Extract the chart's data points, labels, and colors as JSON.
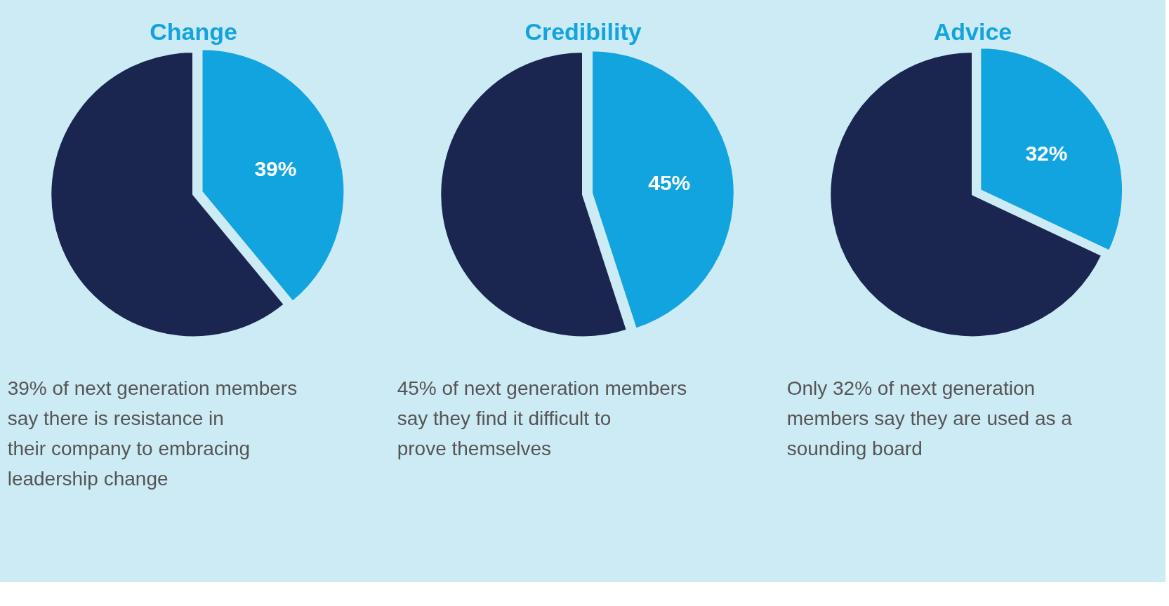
{
  "chart_data": [
    {
      "type": "pie",
      "title": "Change",
      "categories": [
        null,
        null
      ],
      "values": [
        39,
        61
      ],
      "colors": [
        "#12a4de",
        "#1a2650"
      ],
      "value_labels": [
        "39%",
        null
      ],
      "annotations": [
        "39% of next generation members say there is resistance in their company to embracing leadership change"
      ]
    },
    {
      "type": "pie",
      "title": "Credibility",
      "categories": [
        null,
        null
      ],
      "values": [
        45,
        55
      ],
      "colors": [
        "#12a4de",
        "#1a2650"
      ],
      "value_labels": [
        "45%",
        null
      ],
      "annotations": [
        "45% of next generation members say they find it difficult to prove themselves"
      ]
    },
    {
      "type": "pie",
      "title": "Advice",
      "categories": [
        null,
        null
      ],
      "values": [
        32,
        68
      ],
      "colors": [
        "#12a4de",
        "#1a2650"
      ],
      "value_labels": [
        "32%",
        null
      ],
      "annotations": [
        "Only 32% of next generation members say they are used as a sounding board"
      ]
    }
  ]
}
